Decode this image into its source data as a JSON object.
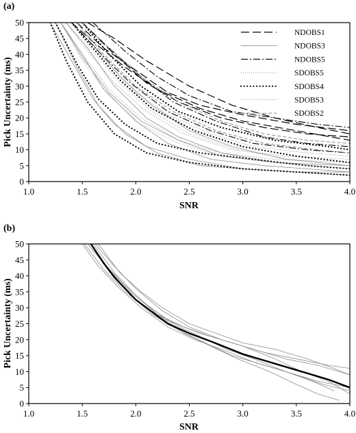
{
  "chart_data": [
    {
      "panel_label": "(a)",
      "type": "line",
      "xlabel": "SNR",
      "ylabel": "Pick Uncertainty (ms)",
      "xlim": [
        1.0,
        4.0
      ],
      "ylim": [
        0,
        50
      ],
      "x_ticks": [
        "1.0",
        "1.5",
        "2.0",
        "2.5",
        "3.0",
        "3.5",
        "4.0"
      ],
      "y_ticks": [
        "0",
        "5",
        "10",
        "15",
        "20",
        "25",
        "30",
        "35",
        "40",
        "45",
        "50"
      ],
      "legend_position": "top-right",
      "series": [
        {
          "name": "NDOBS1",
          "style": "long-dash",
          "color": "#000000",
          "curves": [
            {
              "x": [
                1.45,
                1.7,
                2.0,
                2.3,
                2.6,
                3.0,
                3.5,
                4.0
              ],
              "y": [
                50,
                42,
                35,
                28,
                24,
                21,
                18,
                16
              ]
            },
            {
              "x": [
                1.5,
                1.8,
                2.1,
                2.4,
                2.8,
                3.2,
                3.6,
                4.0
              ],
              "y": [
                50,
                40,
                31,
                25,
                20,
                17,
                15,
                14
              ]
            },
            {
              "x": [
                1.4,
                1.6,
                1.9,
                2.2,
                2.6,
                3.0,
                3.5,
                4.0
              ],
              "y": [
                50,
                44,
                36,
                29,
                23,
                19,
                16,
                13
              ]
            },
            {
              "x": [
                1.55,
                1.8,
                2.1,
                2.5,
                2.9,
                3.3,
                3.7,
                4.0
              ],
              "y": [
                50,
                45,
                38,
                30,
                24,
                20,
                17,
                15
              ]
            }
          ]
        },
        {
          "name": "NDOBS3",
          "style": "solid-thin",
          "color": "#8c8c8c",
          "curves": [
            {
              "x": [
                1.2,
                1.4,
                1.6,
                1.8,
                2.1,
                2.5,
                3.0,
                3.5,
                4.0
              ],
              "y": [
                50,
                38,
                26,
                18,
                11,
                7,
                4,
                3,
                2
              ]
            },
            {
              "x": [
                1.25,
                1.45,
                1.65,
                1.9,
                2.2,
                2.6,
                3.0,
                3.5,
                4.0
              ],
              "y": [
                50,
                36,
                24,
                15,
                9,
                5,
                4,
                3,
                3
              ]
            },
            {
              "x": [
                1.3,
                1.5,
                1.7,
                2.0,
                2.3,
                2.7,
                3.2,
                3.6,
                4.0
              ],
              "y": [
                50,
                40,
                29,
                19,
                12,
                7,
                5,
                4,
                3
              ]
            },
            {
              "x": [
                1.35,
                1.55,
                1.8,
                2.1,
                2.4,
                2.8,
                3.3,
                4.0
              ],
              "y": [
                50,
                42,
                30,
                20,
                14,
                9,
                6,
                4
              ]
            },
            {
              "x": [
                1.4,
                1.6,
                1.85,
                2.15,
                2.5,
                2.9,
                3.4,
                4.0
              ],
              "y": [
                50,
                43,
                33,
                24,
                16,
                11,
                7,
                5
              ]
            },
            {
              "x": [
                1.3,
                1.5,
                1.75,
                2.05,
                2.4,
                2.8,
                3.3,
                4.0
              ],
              "y": [
                50,
                39,
                28,
                19,
                13,
                8,
                6,
                5
              ]
            }
          ]
        },
        {
          "name": "NDOBS5",
          "style": "dash-dot",
          "color": "#000000",
          "curves": [
            {
              "x": [
                1.6,
                1.9,
                2.2,
                2.5,
                2.9,
                3.3,
                3.7,
                4.0
              ],
              "y": [
                50,
                41,
                33,
                27,
                22,
                20,
                18,
                17
              ]
            },
            {
              "x": [
                1.5,
                1.75,
                2.05,
                2.35,
                2.75,
                3.2,
                3.6,
                4.0
              ],
              "y": [
                50,
                42,
                33,
                25,
                19,
                14,
                12,
                11
              ]
            },
            {
              "x": [
                1.4,
                1.65,
                1.95,
                2.3,
                2.7,
                3.1,
                3.6,
                4.0
              ],
              "y": [
                50,
                41,
                31,
                22,
                16,
                12,
                10,
                9
              ]
            }
          ]
        },
        {
          "name": "SDOBS5",
          "style": "fine-dot",
          "color": "#707070",
          "curves": [
            {
              "x": [
                1.3,
                1.5,
                1.75,
                2.05,
                2.4,
                2.8,
                3.3,
                4.0
              ],
              "y": [
                50,
                40,
                29,
                20,
                13,
                9,
                7,
                6
              ]
            },
            {
              "x": [
                1.35,
                1.55,
                1.8,
                2.1,
                2.45,
                2.9,
                3.4,
                4.0
              ],
              "y": [
                50,
                41,
                31,
                22,
                15,
                10,
                8,
                7
              ]
            },
            {
              "x": [
                1.45,
                1.7,
                2.0,
                2.3,
                2.7,
                3.1,
                3.6,
                4.0
              ],
              "y": [
                50,
                39,
                28,
                21,
                15,
                11,
                9,
                8
              ]
            }
          ]
        },
        {
          "name": "SDOBS4",
          "style": "heavy-dot",
          "color": "#000000",
          "curves": [
            {
              "x": [
                1.2,
                1.35,
                1.55,
                1.8,
                2.1,
                2.5,
                3.0,
                3.5,
                4.0
              ],
              "y": [
                50,
                38,
                25,
                15,
                9,
                6,
                4,
                3,
                2
              ]
            },
            {
              "x": [
                1.25,
                1.45,
                1.65,
                1.9,
                2.2,
                2.6,
                3.1,
                3.6,
                4.0
              ],
              "y": [
                50,
                37,
                26,
                18,
                12,
                9,
                7,
                5,
                4
              ]
            },
            {
              "x": [
                1.4,
                1.6,
                1.85,
                2.15,
                2.55,
                3.0,
                3.5,
                4.0
              ],
              "y": [
                50,
                42,
                32,
                23,
                16,
                11,
                8,
                6
              ]
            },
            {
              "x": [
                1.5,
                1.75,
                2.05,
                2.4,
                2.8,
                3.3,
                3.8,
                4.0
              ],
              "y": [
                50,
                40,
                30,
                22,
                17,
                13,
                11,
                10
              ]
            }
          ]
        },
        {
          "name": "SDOBS3",
          "style": "dot",
          "color": "#9a9a9a",
          "curves": [
            {
              "x": [
                1.3,
                1.5,
                1.75,
                2.05,
                2.4,
                2.8,
                3.3,
                4.0
              ],
              "y": [
                50,
                38,
                27,
                18,
                12,
                8,
                6,
                4
              ]
            },
            {
              "x": [
                1.4,
                1.6,
                1.85,
                2.15,
                2.5,
                2.95,
                3.45,
                4.0
              ],
              "y": [
                50,
                41,
                31,
                22,
                15,
                10,
                7,
                5
              ]
            }
          ]
        },
        {
          "name": "SDOBS2",
          "style": "short-dash",
          "color": "#7a7a7a",
          "curves": [
            {
              "x": [
                1.5,
                1.75,
                2.05,
                2.4,
                2.8,
                3.2,
                3.6,
                4.0
              ],
              "y": [
                50,
                42,
                33,
                25,
                19,
                15,
                13,
                12
              ]
            },
            {
              "x": [
                1.45,
                1.7,
                2.0,
                2.35,
                2.75,
                3.2,
                3.7,
                4.0
              ],
              "y": [
                50,
                40,
                30,
                22,
                16,
                12,
                10,
                9
              ]
            }
          ]
        }
      ]
    },
    {
      "panel_label": "(b)",
      "type": "line",
      "xlabel": "SNR",
      "ylabel": "Pick Uncertainty (ms)",
      "xlim": [
        1.0,
        4.0
      ],
      "ylim": [
        0,
        50
      ],
      "x_ticks": [
        "1.0",
        "1.5",
        "2.0",
        "2.5",
        "3.0",
        "3.5",
        "4.0"
      ],
      "y_ticks": [
        "0",
        "5",
        "10",
        "15",
        "20",
        "25",
        "30",
        "35",
        "40",
        "45",
        "50"
      ],
      "mean_curve": {
        "style": "solid-thick",
        "color": "#000000",
        "x": [
          1.58,
          1.7,
          1.8,
          1.9,
          2.0,
          2.1,
          2.2,
          2.3,
          2.5,
          2.7,
          3.0,
          3.3,
          3.6,
          3.8,
          4.0
        ],
        "y": [
          50,
          44,
          39.5,
          36,
          32.5,
          30,
          27.5,
          25,
          22,
          19.5,
          15.5,
          12.5,
          9.5,
          7.5,
          5
        ]
      },
      "station_curves": {
        "style": "solid-thin",
        "color": "#8c8c8c",
        "curves": [
          {
            "x": [
              1.52,
              1.7,
              1.9,
              2.1,
              2.3,
              2.6,
              2.9,
              3.2,
              3.5,
              3.8,
              4.0
            ],
            "y": [
              50,
              42,
              35,
              30,
              26,
              22,
              19,
              16,
              14,
              12,
              11
            ]
          },
          {
            "x": [
              1.5,
              1.65,
              1.85,
              2.05,
              2.3,
              2.55,
              2.8,
              3.1,
              3.4,
              3.7,
              4.0
            ],
            "y": [
              50,
              43,
              36,
              30,
              24,
              20,
              17,
              13,
              10,
              7,
              5
            ]
          },
          {
            "x": [
              1.55,
              1.75,
              1.95,
              2.15,
              2.4,
              2.65,
              2.9,
              3.2,
              3.5,
              3.75,
              4.0
            ],
            "y": [
              50,
              42,
              34,
              28,
              23,
              19,
              15,
              12,
              9,
              6,
              4
            ]
          },
          {
            "x": [
              1.6,
              1.8,
              2.0,
              2.2,
              2.45,
              2.7,
              3.0,
              3.3,
              3.55,
              3.8,
              4.0
            ],
            "y": [
              50,
              41,
              34,
              28,
              24,
              21,
              18,
              14,
              10,
              7,
              3
            ]
          },
          {
            "x": [
              1.58,
              1.75,
              1.95,
              2.2,
              2.45,
              2.7,
              2.95,
              3.25,
              3.5,
              3.7,
              3.9
            ],
            "y": [
              50,
              42,
              35,
              28,
              22,
              18,
              14,
              10,
              6,
              3,
              1
            ]
          },
          {
            "x": [
              1.65,
              1.85,
              2.05,
              2.25,
              2.5,
              2.75,
              3.0,
              3.3,
              3.6,
              3.85,
              4.0
            ],
            "y": [
              50,
              41,
              35,
              30,
              25,
              22,
              19,
              17,
              14,
              11,
              9
            ]
          },
          {
            "x": [
              1.55,
              1.7,
              1.9,
              2.1,
              2.35,
              2.6,
              2.85,
              3.1,
              3.4,
              3.65,
              3.85
            ],
            "y": [
              50,
              44,
              37,
              31,
              25,
              21,
              17,
              14,
              10,
              7,
              4
            ]
          },
          {
            "x": [
              1.62,
              1.8,
              2.0,
              2.25,
              2.5,
              2.8,
              3.1,
              3.4,
              3.7,
              4.0
            ],
            "y": [
              50,
              43,
              36,
              29,
              24,
              20,
              17,
              14,
              12,
              9
            ]
          }
        ]
      }
    }
  ]
}
